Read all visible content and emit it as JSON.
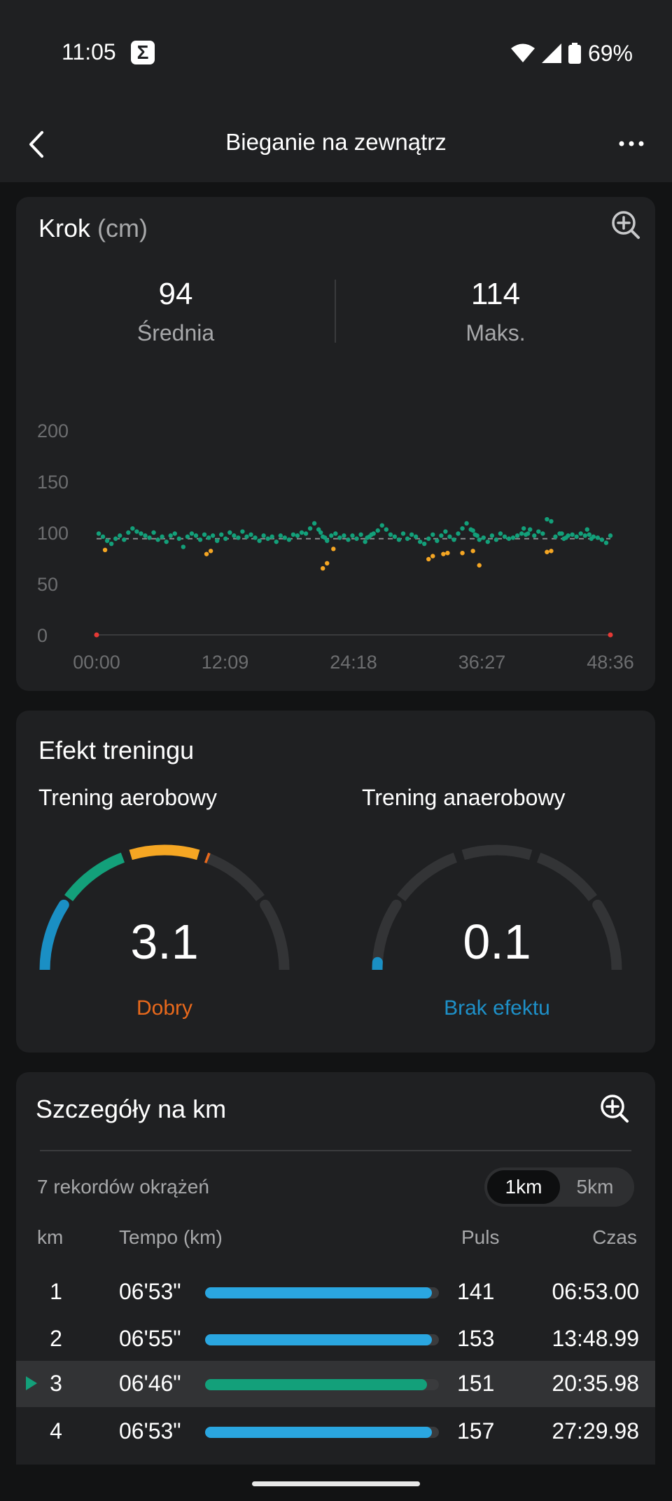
{
  "status": {
    "time": "11:05",
    "notif_glyph": "Σ",
    "battery": "69%"
  },
  "header": {
    "title": "Bieganie na zewnątrz"
  },
  "step": {
    "title": "Krok",
    "unit": "(cm)",
    "avg_value": "94",
    "avg_label": "Średnia",
    "max_value": "114",
    "max_label": "Maks."
  },
  "chart_data": {
    "type": "scatter",
    "title": "Krok",
    "ylabel": "cm",
    "y_ticks": [
      "200",
      "150",
      "100",
      "50",
      "0"
    ],
    "x_ticks": [
      "00:00",
      "12:09",
      "24:18",
      "36:27",
      "48:36"
    ],
    "xlim": [
      0,
      48.6
    ],
    "ylim": [
      0,
      200
    ],
    "reference_line": 94,
    "colors": {
      "normal": "#13a07a",
      "low": "#f5a623",
      "marker": "#e53935",
      "ref": "#8a8b8d"
    },
    "series": [
      {
        "color": "normal",
        "points": [
          [
            0.2,
            99
          ],
          [
            0.6,
            96
          ],
          [
            1.0,
            92
          ],
          [
            1.4,
            89
          ],
          [
            1.8,
            94
          ],
          [
            2.2,
            97
          ],
          [
            2.6,
            93
          ],
          [
            3.0,
            100
          ],
          [
            3.4,
            104
          ],
          [
            3.8,
            101
          ],
          [
            4.2,
            99
          ],
          [
            4.6,
            97
          ],
          [
            5.0,
            95
          ],
          [
            5.4,
            100
          ],
          [
            5.8,
            93
          ],
          [
            6.2,
            96
          ],
          [
            6.6,
            91
          ],
          [
            7.0,
            97
          ],
          [
            7.4,
            99
          ],
          [
            7.8,
            94
          ],
          [
            8.2,
            86
          ],
          [
            8.6,
            96
          ],
          [
            9.0,
            99
          ],
          [
            9.4,
            97
          ],
          [
            9.8,
            93
          ],
          [
            10.2,
            98
          ],
          [
            10.6,
            95
          ],
          [
            11.0,
            97
          ],
          [
            11.4,
            92
          ],
          [
            11.8,
            98
          ],
          [
            12.2,
            94
          ],
          [
            12.6,
            100
          ],
          [
            13.0,
            97
          ],
          [
            13.4,
            95
          ],
          [
            13.8,
            101
          ],
          [
            14.2,
            96
          ],
          [
            14.6,
            98
          ],
          [
            15.0,
            95
          ],
          [
            15.4,
            92
          ],
          [
            15.8,
            97
          ],
          [
            16.2,
            94
          ],
          [
            16.6,
            96
          ],
          [
            17.0,
            91
          ],
          [
            17.4,
            97
          ],
          [
            17.8,
            95
          ],
          [
            18.2,
            93
          ],
          [
            18.6,
            98
          ],
          [
            19.0,
            97
          ],
          [
            19.4,
            100
          ],
          [
            19.8,
            99
          ],
          [
            20.2,
            104
          ],
          [
            20.6,
            109
          ],
          [
            21.0,
            103
          ],
          [
            21.4,
            96
          ],
          [
            21.8,
            92
          ],
          [
            22.2,
            97
          ],
          [
            22.6,
            99
          ],
          [
            23.0,
            95
          ],
          [
            23.4,
            97
          ],
          [
            23.8,
            93
          ],
          [
            24.2,
            97
          ],
          [
            24.6,
            94
          ],
          [
            25.0,
            98
          ],
          [
            25.4,
            91
          ],
          [
            25.8,
            96
          ],
          [
            26.2,
            99
          ],
          [
            26.6,
            102
          ],
          [
            27.0,
            107
          ],
          [
            27.4,
            103
          ],
          [
            27.8,
            98
          ],
          [
            28.2,
            96
          ],
          [
            28.6,
            93
          ],
          [
            29.0,
            99
          ],
          [
            29.4,
            94
          ],
          [
            29.8,
            98
          ],
          [
            30.2,
            96
          ],
          [
            30.6,
            91
          ],
          [
            31.0,
            89
          ],
          [
            31.4,
            94
          ],
          [
            31.8,
            98
          ],
          [
            32.2,
            92
          ],
          [
            32.6,
            97
          ],
          [
            33.0,
            101
          ],
          [
            33.4,
            96
          ],
          [
            33.8,
            93
          ],
          [
            34.2,
            99
          ],
          [
            34.6,
            104
          ],
          [
            35.0,
            109
          ],
          [
            35.4,
            103
          ],
          [
            35.8,
            98
          ],
          [
            36.2,
            93
          ],
          [
            36.6,
            95
          ],
          [
            37.0,
            91
          ],
          [
            37.4,
            97
          ],
          [
            37.8,
            93
          ],
          [
            38.2,
            99
          ],
          [
            38.6,
            96
          ],
          [
            39.0,
            94
          ],
          [
            39.4,
            95
          ],
          [
            39.8,
            97
          ],
          [
            40.2,
            99
          ],
          [
            40.6,
            98
          ],
          [
            41.0,
            103
          ],
          [
            41.4,
            97
          ],
          [
            41.8,
            101
          ],
          [
            42.2,
            99
          ],
          [
            42.6,
            113
          ],
          [
            43.0,
            111
          ],
          [
            43.4,
            96
          ],
          [
            43.8,
            99
          ],
          [
            44.2,
            94
          ],
          [
            44.6,
            97
          ],
          [
            45.0,
            98
          ],
          [
            45.4,
            96
          ],
          [
            45.8,
            99
          ],
          [
            46.2,
            97
          ],
          [
            46.6,
            98
          ],
          [
            47.0,
            96
          ],
          [
            47.4,
            95
          ],
          [
            47.8,
            93
          ],
          [
            48.2,
            90
          ],
          [
            48.6,
            97
          ],
          [
            21.2,
            100
          ],
          [
            21.6,
            95
          ],
          [
            25.6,
            95
          ],
          [
            26.0,
            98
          ],
          [
            35.6,
            102
          ],
          [
            36.0,
            97
          ],
          [
            40.4,
            104
          ],
          [
            40.8,
            99
          ],
          [
            44.0,
            99
          ],
          [
            44.4,
            95
          ],
          [
            46.4,
            103
          ],
          [
            46.8,
            94
          ]
        ]
      },
      {
        "color": "low",
        "points": [
          [
            0.8,
            83
          ],
          [
            10.4,
            79
          ],
          [
            10.8,
            82
          ],
          [
            21.4,
            65
          ],
          [
            21.8,
            70
          ],
          [
            22.4,
            84
          ],
          [
            31.4,
            74
          ],
          [
            31.8,
            77
          ],
          [
            32.8,
            79
          ],
          [
            33.2,
            80
          ],
          [
            34.6,
            80
          ],
          [
            35.6,
            82
          ],
          [
            36.2,
            68
          ],
          [
            42.6,
            81
          ],
          [
            43.0,
            82
          ]
        ]
      }
    ]
  },
  "effect": {
    "title": "Efekt treningu",
    "aerobic": {
      "label": "Trening aerobowy",
      "value": "3.1",
      "value_num": 3.1,
      "status": "Dobry",
      "status_color": "#e8691c"
    },
    "anaerobic": {
      "label": "Trening anaerobowy",
      "value": "0.1",
      "value_num": 0.1,
      "status": "Brak efektu",
      "status_color": "#1e90c8"
    },
    "scale_max": 5
  },
  "km": {
    "title": "Szczegóły na km",
    "records": "7 rekordów okrążeń",
    "seg_active": "1km",
    "seg_inactive": "5km",
    "headers": {
      "km": "km",
      "tempo": "Tempo (km)",
      "puls": "Puls",
      "czas": "Czas"
    },
    "rows": [
      {
        "km": "1",
        "tempo": "06'53\"",
        "progress": 0.97,
        "color": "#2aa6e0",
        "puls": "141",
        "czas": "06:53.00",
        "highlight": false
      },
      {
        "km": "2",
        "tempo": "06'55\"",
        "progress": 0.97,
        "color": "#2aa6e0",
        "puls": "153",
        "czas": "13:48.99",
        "highlight": false
      },
      {
        "km": "3",
        "tempo": "06'46\"",
        "progress": 0.95,
        "color": "#13a07a",
        "puls": "151",
        "czas": "20:35.98",
        "highlight": true
      },
      {
        "km": "4",
        "tempo": "06'53\"",
        "progress": 0.97,
        "color": "#2aa6e0",
        "puls": "157",
        "czas": "27:29.98",
        "highlight": false
      }
    ]
  }
}
